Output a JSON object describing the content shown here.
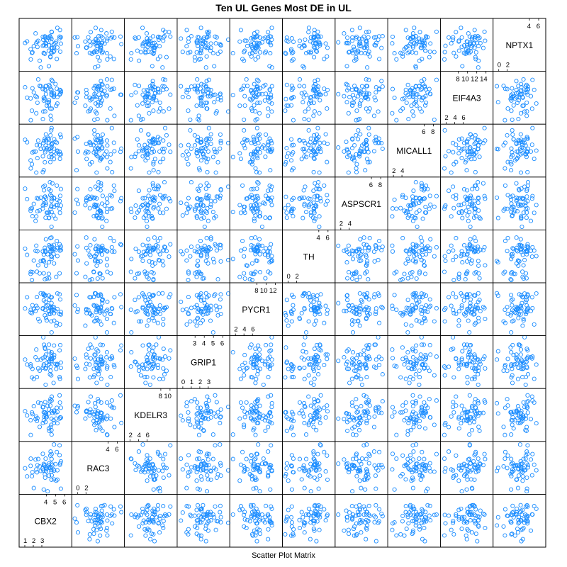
{
  "chart_data": {
    "type": "scatter",
    "title": "Ten UL Genes Most DE in UL",
    "subtitle": "Scatter Plot Matrix",
    "point_color": "#1a8cff",
    "point_style": "open-circle",
    "variables": [
      {
        "name": "CBX2",
        "range": [
          0.5,
          6.5
        ],
        "ticks_low": [
          "1",
          "2",
          "3"
        ],
        "ticks_high": [
          "4",
          "5",
          "6"
        ]
      },
      {
        "name": "RAC3",
        "range": [
          -0.8,
          6.8
        ],
        "ticks_low": [
          "0",
          "2"
        ],
        "ticks_high": [
          "4",
          "6"
        ]
      },
      {
        "name": "KDELR3",
        "range": [
          0.5,
          11
        ],
        "ticks_low": [
          "2",
          "4",
          "6"
        ],
        "ticks_high": [
          "8",
          "10"
        ]
      },
      {
        "name": "GRIP1",
        "range": [
          -0.5,
          6.5
        ],
        "ticks_low": [
          "0",
          "1",
          "2",
          "3"
        ],
        "ticks_high": [
          "3",
          "4",
          "5",
          "6"
        ]
      },
      {
        "name": "PYCR1",
        "range": [
          0.5,
          13.5
        ],
        "ticks_low": [
          "2",
          "4",
          "6"
        ],
        "ticks_high": [
          "8",
          "10",
          "12"
        ]
      },
      {
        "name": "TH",
        "range": [
          -1,
          7.5
        ],
        "ticks_low": [
          "0",
          "2"
        ],
        "ticks_high": [
          "4",
          "6"
        ]
      },
      {
        "name": "ASPSCR1",
        "range": [
          0.5,
          9
        ],
        "ticks_low": [
          "2",
          "4"
        ],
        "ticks_high": [
          "6",
          "8"
        ]
      },
      {
        "name": "MICALL1",
        "range": [
          0.5,
          9
        ],
        "ticks_low": [
          "2",
          "4"
        ],
        "ticks_high": [
          "6",
          "8"
        ]
      },
      {
        "name": "EIF4A3",
        "range": [
          0,
          15
        ],
        "ticks_low": [
          "2",
          "4",
          "6"
        ],
        "ticks_high": [
          "8",
          "10",
          "12",
          "14"
        ]
      },
      {
        "name": "NPTX1",
        "range": [
          -0.5,
          7.5
        ],
        "ticks_low": [
          "0",
          "2"
        ],
        "ticks_high": [
          "4",
          "6"
        ]
      }
    ],
    "n_samples": 60,
    "grid": false,
    "legend": "none"
  }
}
